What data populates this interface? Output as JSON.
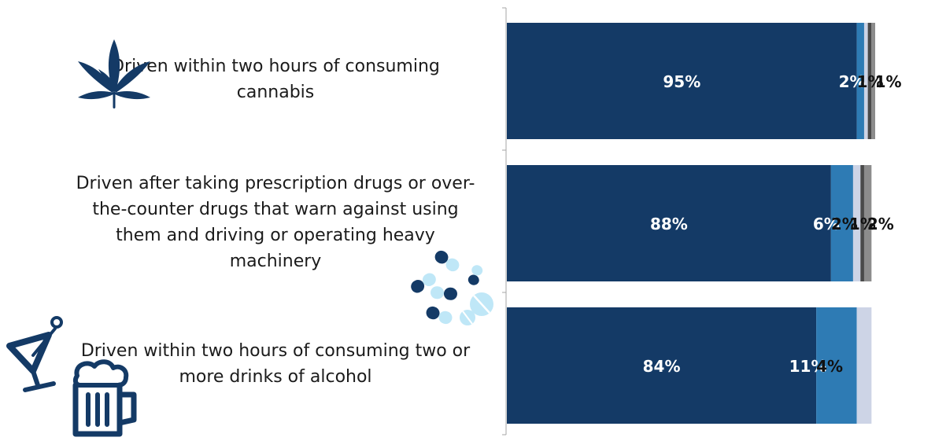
{
  "chart_data": {
    "type": "bar",
    "orientation": "horizontal",
    "stacked": true,
    "categories": [
      "Driven within two hours of consuming cannabis",
      "Driven after taking prescription drugs or over-the-counter drugs that warn against using them and driving or operating heavy machinery",
      "Driven within two hours of consuming two or more drinks of alcohol"
    ],
    "series": [
      {
        "values": [
          95,
          88,
          84
        ]
      },
      {
        "values": [
          2,
          6,
          11
        ]
      },
      {
        "values": [
          1,
          2,
          4
        ]
      },
      {
        "values": [
          1,
          1,
          0
        ]
      },
      {
        "values": [
          1,
          2,
          0
        ]
      }
    ],
    "data_labels": [
      [
        "95%",
        "2%",
        "1%",
        "1%",
        ""
      ],
      [
        "88%",
        "6%",
        "2%",
        "1%",
        "2%"
      ],
      [
        "84%",
        "11%",
        "4%",
        "",
        ""
      ]
    ],
    "xlim": [
      0,
      100
    ],
    "grid": false,
    "legend": "none",
    "colors": [
      "#143a66",
      "#2e7bb4",
      "#cdd4e6",
      "#4a4a4a",
      "#8c8c8c"
    ]
  },
  "labels": [
    {
      "lines": [
        "Driven within two hours of consuming",
        "cannabis"
      ]
    },
    {
      "lines": [
        "Driven after taking prescription drugs or over-",
        "the-counter drugs that warn against using",
        "them and driving or operating heavy",
        "machinery"
      ]
    },
    {
      "lines": [
        "Driven within two hours of consuming two or",
        "more drinks of alcohol"
      ]
    }
  ],
  "icons": [
    "cannabis-leaf-icon",
    "pills-icon",
    "cocktail-glass-icon",
    "beer-mug-icon"
  ],
  "icon_colors": {
    "dark": "#143a66",
    "light": "#bfe7f7"
  }
}
